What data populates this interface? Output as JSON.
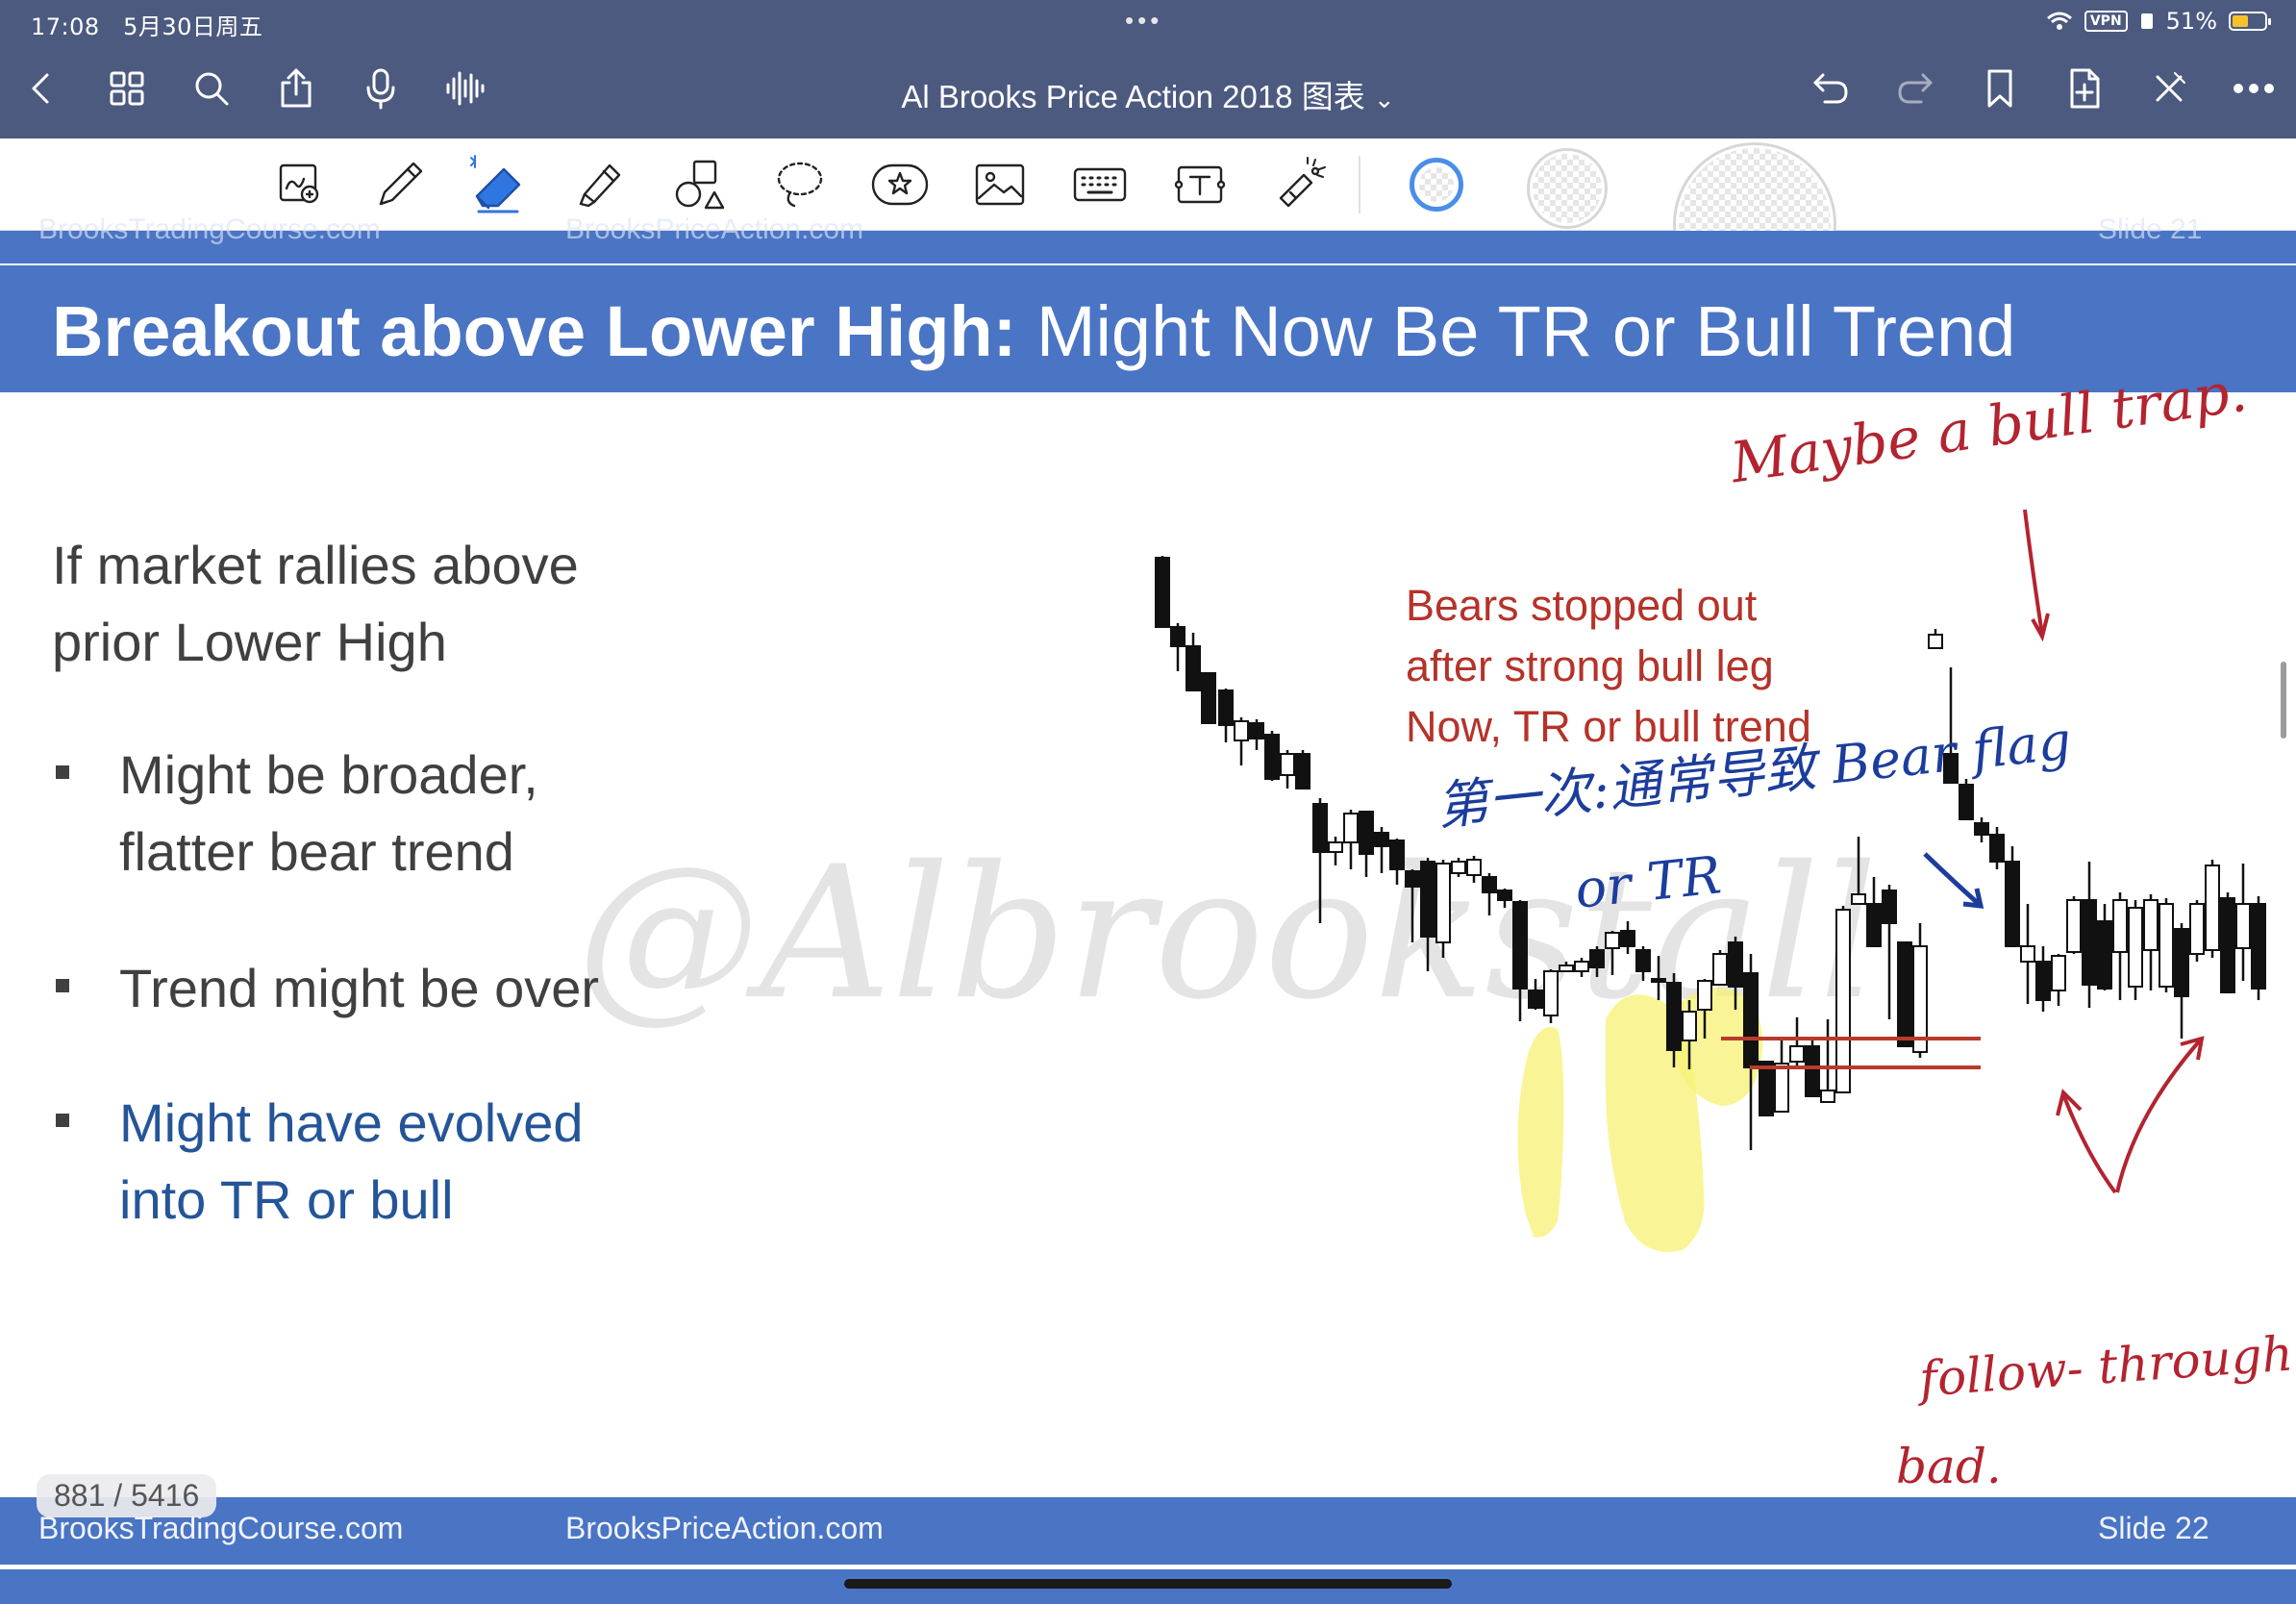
{
  "status_bar": {
    "time": "17:08",
    "date": "5月30日周五",
    "dots": "•••",
    "vpn": "VPN",
    "battery": "51%",
    "battery_level": 0.51
  },
  "nav": {
    "title": "Al Brooks Price Action 2018 图表",
    "title_chevron": "⌄"
  },
  "slide": {
    "prev_strip_left": "BrooksTradingCourse.com",
    "prev_strip_mid": "BrooksPriceAction.com",
    "prev_strip_right": "Slide  21",
    "title_bold": "Breakout above Lower High:",
    "title_rest": " Might Now Be TR or Bull Trend",
    "intro_line1": "If market rallies above",
    "intro_line2": "prior Lower High",
    "bullets": [
      {
        "line1": "Might be broader,",
        "line2": "flatter bear trend"
      },
      {
        "line1": "Trend might be over",
        "line2": ""
      },
      {
        "line1": "Might have evolved",
        "line2": "into TR or bull"
      }
    ],
    "red_note": [
      "Bears stopped out",
      "after strong bull leg",
      "Now, TR or bull trend"
    ],
    "watermark": "@Albrookstall",
    "footer_left": "BrooksTradingCourse.com",
    "footer_mid": "BrooksPriceAction.com",
    "footer_right": "Slide  22"
  },
  "handwriting": {
    "red_top": "Maybe a bull trap.",
    "blue_line1": "第一次:通常导致 Bear flag",
    "blue_line2": "or TR",
    "red_bottom1": "follow- through",
    "red_bottom2": "bad."
  },
  "page_counter": "881 / 5416",
  "colors": {
    "nav_bg": "#4c5a7f",
    "slide_blue": "#4a74c4",
    "title_text": "#ffffff",
    "body_text": "#404040",
    "blue_text": "#245598",
    "red_note": "#b5332a",
    "ink_red": "#b32430",
    "ink_blue": "#1c3d9c",
    "highlighter": "#f7f274",
    "blue_box": "#5a7fd6"
  },
  "icons": {
    "nav": [
      "back-icon",
      "grid-icon",
      "search-icon",
      "share-icon",
      "mic-icon",
      "waveform-icon",
      "undo-icon",
      "redo-icon",
      "bookmark-icon",
      "add-page-icon",
      "close-tools-icon",
      "more-icon"
    ],
    "tools": [
      "zoom-lasso-icon",
      "pen-icon",
      "eraser-icon",
      "highlighter-icon",
      "shapes-icon",
      "lasso-icon",
      "sticker-icon",
      "image-icon",
      "keyboard-icon",
      "textbox-icon",
      "laser-pointer-icon"
    ]
  }
}
